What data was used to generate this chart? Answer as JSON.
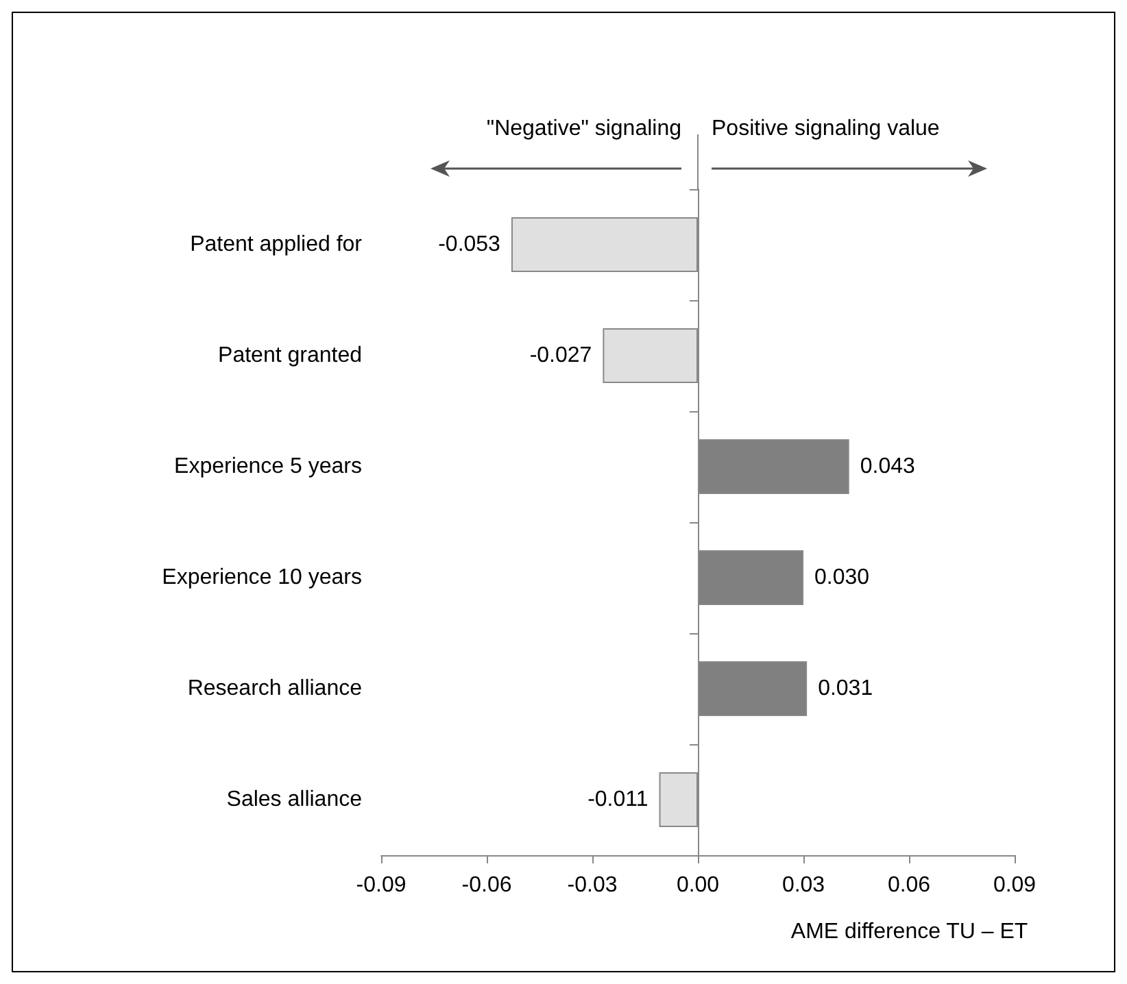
{
  "chart_data": {
    "type": "bar",
    "orientation": "horizontal",
    "xlabel": "AME difference TU – ET",
    "categories": [
      "Patent applied for",
      "Patent granted",
      "Experience 5 years",
      "Experience 10 years",
      "Research alliance",
      "Sales alliance"
    ],
    "values": [
      -0.053,
      -0.027,
      0.043,
      0.03,
      0.031,
      -0.011
    ],
    "value_labels": [
      "-0.053",
      "-0.027",
      "0.043",
      "0.030",
      "0.031",
      "-0.011"
    ],
    "colors": [
      "#e0e0e0",
      "#e0e0e0",
      "#808080",
      "#808080",
      "#808080",
      "#e0e0e0"
    ],
    "xlim": [
      -0.09,
      0.09
    ],
    "xticks": [
      {
        "value": -0.09,
        "label": "-0.09"
      },
      {
        "value": -0.06,
        "label": "-0.06"
      },
      {
        "value": -0.03,
        "label": "-0.03"
      },
      {
        "value": 0,
        "label": "0.00"
      },
      {
        "value": 0.03,
        "label": "0.03"
      },
      {
        "value": 0.06,
        "label": "0.06"
      },
      {
        "value": 0.09,
        "label": "0.09"
      }
    ],
    "annotations": [
      "\"Negative\" signaling",
      "Positive signaling value"
    ]
  }
}
